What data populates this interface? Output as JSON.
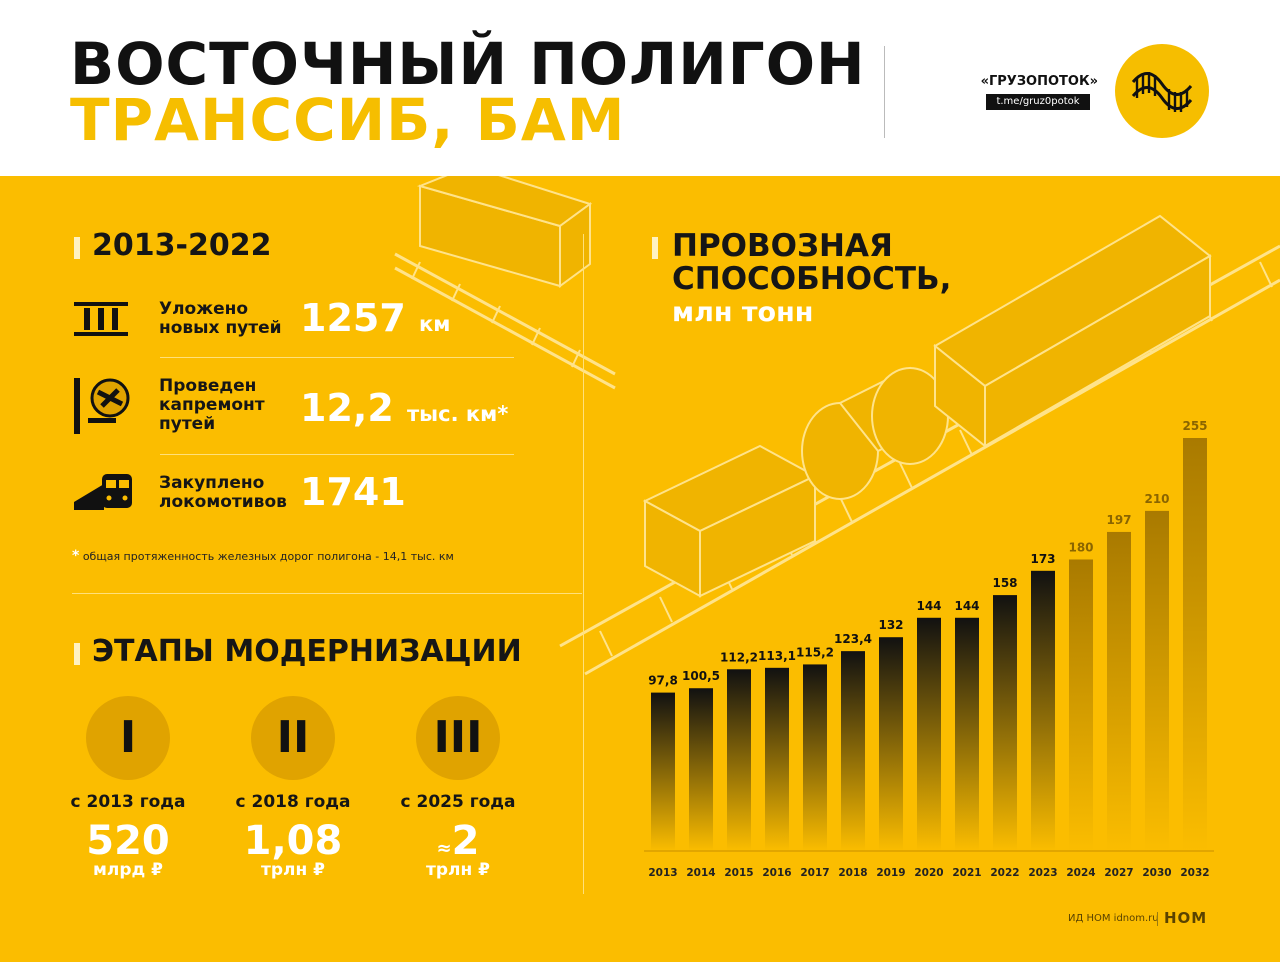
{
  "header": {
    "title_line1": "ВОСТОЧНЫЙ ПОЛИГОН",
    "title_line2": "ТРАНССИБ, БАМ",
    "brand_name": "«ГРУЗОПОТОК»",
    "brand_link": "t.me/gruz0potok"
  },
  "stats_section": {
    "title": "2013-2022",
    "items": [
      {
        "icon": "rail-track-icon",
        "label_lines": [
          "Уложено",
          "новых путей"
        ],
        "value": "1257",
        "unit": "км"
      },
      {
        "icon": "repair-tools-icon",
        "label_lines": [
          "Проведен",
          "капремонт",
          "путей"
        ],
        "value": "12,2",
        "unit": "тыс. км*"
      },
      {
        "icon": "locomotive-icon",
        "label_lines": [
          "Закуплено",
          "локомотивов"
        ],
        "value": "1741",
        "unit": ""
      }
    ],
    "footnote_star": "*",
    "footnote": "общая протяженность железных дорог полигона - 14,1 тыс. км"
  },
  "modernization": {
    "title": "ЭТАПЫ МОДЕРНИЗАЦИИ",
    "stages": [
      {
        "numeral": "I",
        "since": "с 2013 года",
        "prefix": "",
        "amount": "520",
        "unit": "млрд ₽"
      },
      {
        "numeral": "II",
        "since": "с 2018 года",
        "prefix": "",
        "amount": "1,08",
        "unit": "трлн ₽"
      },
      {
        "numeral": "III",
        "since": "с 2025 года",
        "prefix": "≈",
        "amount": "2",
        "unit": "трлн ₽"
      }
    ]
  },
  "chart_data": {
    "type": "bar",
    "title_lines": [
      "ПРОВОЗНАЯ",
      "СПОСОБНОСТЬ,"
    ],
    "subtitle": "млн тонн",
    "categories": [
      "2013",
      "2014",
      "2015",
      "2016",
      "2017",
      "2018",
      "2019",
      "2020",
      "2021",
      "2022",
      "2023",
      "2024",
      "2027",
      "2030",
      "2032"
    ],
    "values": [
      97.8,
      100.5,
      112.2,
      113.1,
      115.2,
      123.4,
      132,
      144,
      144,
      158,
      173,
      180,
      197,
      210,
      255
    ],
    "value_labels": [
      "97,8",
      "100,5",
      "112,2",
      "113,1",
      "115,2",
      "123,4",
      "132",
      "144",
      "144",
      "158",
      "173",
      "180",
      "197",
      "210",
      "255"
    ],
    "actual_through_index": 10,
    "colors": {
      "actual": "#111111",
      "forecast": "#b98800",
      "forecast_label": "#8a6500",
      "background": "#fbbd00"
    }
  },
  "footer": {
    "credit": "ИД НОМ idnom.ru",
    "logo": "НОМ"
  }
}
